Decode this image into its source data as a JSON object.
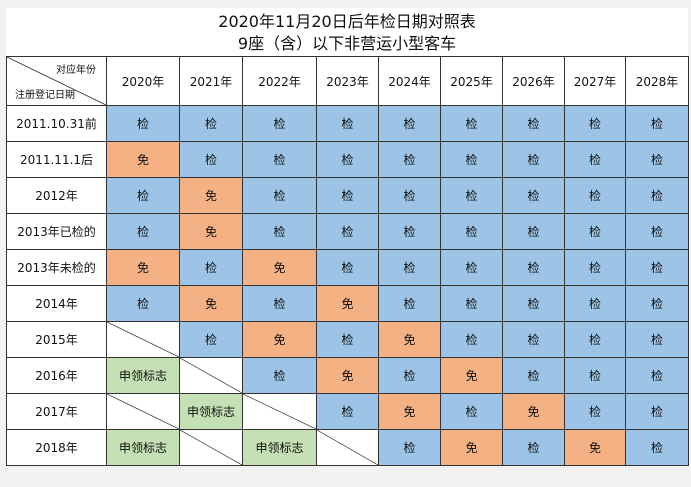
{
  "title": {
    "line1": "2020年11月20日后年检日期对照表",
    "line2": "9座（含）以下非营运小型客车"
  },
  "header": {
    "corner_top": "对应年份",
    "corner_bottom": "注册登记日期",
    "years": [
      "2020年",
      "2021年",
      "2022年",
      "2023年",
      "2024年",
      "2025年",
      "2026年",
      "2027年",
      "2028年"
    ]
  },
  "legend_colors": {
    "检": "#9dc3e6",
    "免": "#f4b183",
    "申领标志": "#c5e0b4",
    "blank": "#ffffff"
  },
  "rows": [
    {
      "label": "2011.10.31前",
      "cells": [
        "检",
        "检",
        "检",
        "检",
        "检",
        "检",
        "检",
        "检",
        "检"
      ]
    },
    {
      "label": "2011.11.1后",
      "cells": [
        "免",
        "检",
        "检",
        "检",
        "检",
        "检",
        "检",
        "检",
        "检"
      ]
    },
    {
      "label": "2012年",
      "cells": [
        "检",
        "免",
        "检",
        "检",
        "检",
        "检",
        "检",
        "检",
        "检"
      ]
    },
    {
      "label": "2013年已检的",
      "cells": [
        "检",
        "免",
        "检",
        "检",
        "检",
        "检",
        "检",
        "检",
        "检"
      ]
    },
    {
      "label": "2013年未检的",
      "cells": [
        "免",
        "检",
        "免",
        "检",
        "检",
        "检",
        "检",
        "检",
        "检"
      ]
    },
    {
      "label": "2014年",
      "cells": [
        "检",
        "免",
        "检",
        "免",
        "检",
        "检",
        "检",
        "检",
        "检"
      ]
    },
    {
      "label": "2015年",
      "cells": [
        "",
        "检",
        "免",
        "检",
        "免",
        "检",
        "检",
        "检",
        "检"
      ]
    },
    {
      "label": "2016年",
      "cells": [
        "申领标志",
        "",
        "检",
        "免",
        "检",
        "免",
        "检",
        "检",
        "检"
      ]
    },
    {
      "label": "2017年",
      "cells": [
        "",
        "申领标志",
        "",
        "检",
        "免",
        "检",
        "免",
        "检",
        "检"
      ]
    },
    {
      "label": "2018年",
      "cells": [
        "申领标志",
        "",
        "申领标志",
        "",
        "检",
        "免",
        "检",
        "免",
        "检"
      ]
    }
  ]
}
